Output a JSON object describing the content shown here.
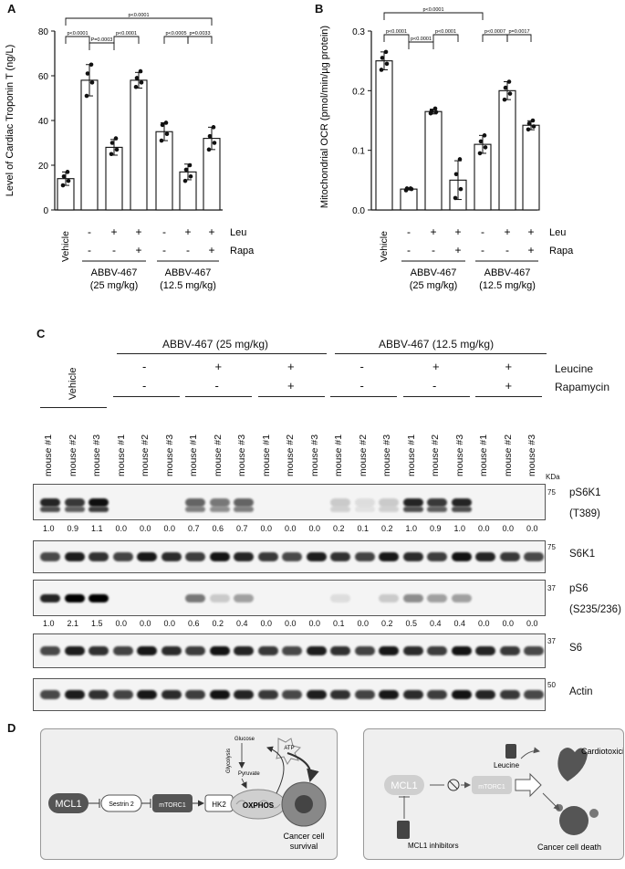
{
  "panel_labels": {
    "a": "A",
    "b": "B",
    "c": "C",
    "d": "D"
  },
  "panel_a": {
    "ylabel": "Level of Cardiac Troponin T (ng/L)",
    "yticks": [
      "0",
      "20",
      "40",
      "60",
      "80"
    ],
    "ylim": [
      0,
      80
    ],
    "bars": [
      {
        "value": 14,
        "points": [
          11,
          13,
          15,
          17
        ]
      },
      {
        "value": 58,
        "points": [
          51,
          57,
          61,
          65
        ]
      },
      {
        "value": 28,
        "points": [
          25,
          27,
          30,
          32
        ]
      },
      {
        "value": 58,
        "points": [
          55,
          57,
          59,
          62
        ]
      },
      {
        "value": 35,
        "points": [
          31,
          34,
          38,
          39
        ]
      },
      {
        "value": 17,
        "points": [
          13,
          15,
          18,
          20
        ]
      },
      {
        "value": 32,
        "points": [
          27,
          30,
          33,
          37
        ]
      }
    ],
    "pvalues": [
      "p<0.0001",
      "p<0.0001",
      "P=0.0003",
      "p<0.0001",
      "p<0.0005",
      "p=0.0033"
    ]
  },
  "panel_b": {
    "ylabel": "Mitochondrial OCR (pmol/min/µg protein)",
    "yticks": [
      "0.0",
      "0.1",
      "0.2",
      "0.3"
    ],
    "ylim": [
      0,
      0.3
    ],
    "bars": [
      {
        "value": 0.25,
        "points": [
          0.235,
          0.245,
          0.255,
          0.265
        ]
      },
      {
        "value": 0.035,
        "points": [
          0.033,
          0.035,
          0.036,
          0.036
        ]
      },
      {
        "value": 0.165,
        "points": [
          0.162,
          0.164,
          0.166,
          0.17
        ]
      },
      {
        "value": 0.05,
        "points": [
          0.02,
          0.035,
          0.06,
          0.085
        ]
      },
      {
        "value": 0.11,
        "points": [
          0.095,
          0.105,
          0.115,
          0.125
        ]
      },
      {
        "value": 0.2,
        "points": [
          0.185,
          0.195,
          0.205,
          0.215
        ]
      },
      {
        "value": 0.142,
        "points": [
          0.135,
          0.14,
          0.145,
          0.15
        ]
      }
    ],
    "pvalues": [
      "p<0.0001",
      "p<0.0001",
      "p<0.0001",
      "p<0.0001",
      "p<0.0007",
      "p=0.0017"
    ]
  },
  "graph_xaxis": {
    "vehicle": "Vehicle",
    "leu_row": [
      "-",
      "+",
      "+",
      "-",
      "+",
      "+"
    ],
    "rapa_row": [
      "-",
      "-",
      "+",
      "-",
      "-",
      "+"
    ],
    "leu_label": "Leu",
    "rapa_label": "Rapa",
    "group1": [
      "ABBV-467",
      "(25 mg/kg)"
    ],
    "group2": [
      "ABBV-467",
      "(12.5 mg/kg)"
    ]
  },
  "panel_c": {
    "group1": "ABBV-467 (25 mg/kg)",
    "group2": "ABBV-467 (12.5 mg/kg)",
    "vehicle": "Vehicle",
    "leucine_label": "Leucine",
    "rapamycin_label": "Rapamycin",
    "leucine_row": [
      "-",
      "+",
      "+",
      "-",
      "+",
      "+"
    ],
    "rapamycin_row": [
      "-",
      "-",
      "+",
      "-",
      "-",
      "+"
    ],
    "lanes": [
      "mouse #1",
      "mouse #2",
      "mouse #3",
      "mouse #1",
      "mouse #2",
      "mouse #3",
      "mouse #1",
      "mouse #2",
      "mouse #3",
      "mouse #1",
      "mouse #2",
      "mouse #3",
      "mouse #1",
      "mouse #2",
      "mouse #3",
      "mouse #1",
      "mouse #2",
      "mouse #3",
      "mouse #1",
      "mouse #2",
      "mouse #3"
    ],
    "kda": "KDa",
    "blots": [
      {
        "name": "pS6K1",
        "sub": "(T389)",
        "marker": "75",
        "intensity": [
          1.0,
          0.9,
          1.1,
          0,
          0,
          0,
          0.7,
          0.6,
          0.7,
          0,
          0,
          0,
          0.2,
          0.1,
          0.2,
          1.0,
          0.9,
          1.0,
          0,
          0,
          0
        ]
      },
      {
        "name": "S6K1",
        "sub": "",
        "marker": "75",
        "intensity": []
      },
      {
        "name": "pS6",
        "sub": "(S235/236)",
        "marker": "37",
        "intensity": [
          1.0,
          2.1,
          1.5,
          0,
          0,
          0,
          0.6,
          0.2,
          0.4,
          0,
          0,
          0,
          0.1,
          0,
          0.2,
          0.5,
          0.4,
          0.4,
          0,
          0,
          0
        ]
      },
      {
        "name": "S6",
        "sub": "",
        "marker": "37",
        "intensity": []
      },
      {
        "name": "Actin",
        "sub": "",
        "marker": "50",
        "intensity": []
      }
    ],
    "quant_ps6k1": [
      "1.0",
      "0.9",
      "1.1",
      "0.0",
      "0.0",
      "0.0",
      "0.7",
      "0.6",
      "0.7",
      "0.0",
      "0.0",
      "0.0",
      "0.2",
      "0.1",
      "0.2",
      "1.0",
      "0.9",
      "1.0",
      "0.0",
      "0.0",
      "0.0"
    ],
    "quant_ps6": [
      "1.0",
      "2.1",
      "1.5",
      "0.0",
      "0.0",
      "0.0",
      "0.6",
      "0.2",
      "0.4",
      "0.0",
      "0.0",
      "0.0",
      "0.1",
      "0.0",
      "0.2",
      "0.5",
      "0.4",
      "0.4",
      "0.0",
      "0.0",
      "0.0"
    ]
  },
  "panel_d": {
    "left": {
      "mcl1": "MCL1",
      "sestrin": "Sestrin 2",
      "mtorc1": "mTORC1",
      "hk2": "HK2",
      "glucose": "Glucose",
      "glycolysis": "Glycolysis",
      "pyruvate": "Pyruvate",
      "oxphos": "OXPHOS",
      "atp": "ATP",
      "outcome": [
        "Cancer cell",
        "survival"
      ]
    },
    "right": {
      "mcl1": "MCL1",
      "mtorc1": "mTORC1",
      "leucine": "Leucine",
      "inhibitors": "MCL1 inhibitors",
      "cardiotox": "Cardiotoxicity",
      "death": "Cancer cell death"
    }
  },
  "colors": {
    "dark_node": "#555555",
    "panel_bg": "#eeeeee",
    "faded": "#c8c8c8"
  }
}
